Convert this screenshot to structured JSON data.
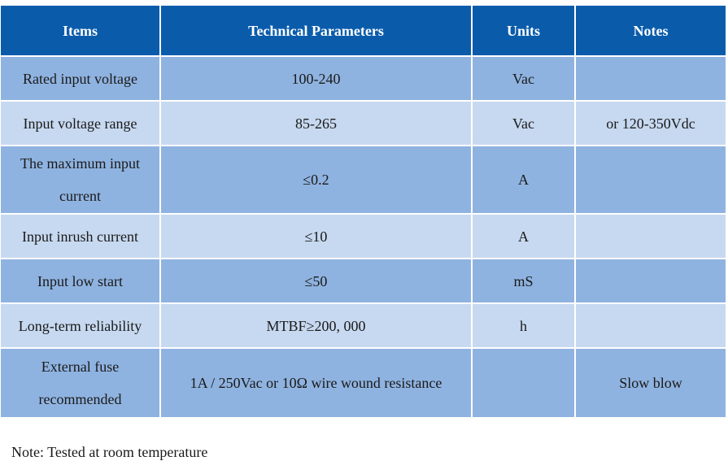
{
  "table": {
    "headers": {
      "items": "Items",
      "technical_parameters": "Technical Parameters",
      "units": "Units",
      "notes": "Notes"
    },
    "rows": [
      {
        "item": "Rated input voltage",
        "parameter": "100-240",
        "unit": "Vac",
        "note": ""
      },
      {
        "item": "Input voltage range",
        "parameter": "85-265",
        "unit": "Vac",
        "note": "or 120-350Vdc"
      },
      {
        "item": "The maximum input current",
        "parameter": "≤0.2",
        "unit": "A",
        "note": ""
      },
      {
        "item": "Input inrush current",
        "parameter": "≤10",
        "unit": "A",
        "note": ""
      },
      {
        "item": "Input low start",
        "parameter": "≤50",
        "unit": "mS",
        "note": ""
      },
      {
        "item": "Long-term reliability",
        "parameter": "MTBF≥200, 000",
        "unit": "h",
        "note": ""
      },
      {
        "item": "External fuse recommended",
        "parameter": "1A / 250Vac or 10Ω wire wound resistance",
        "unit": "",
        "note": "Slow blow"
      }
    ]
  },
  "footnote": "Note: Tested at room temperature",
  "colors": {
    "header_background": "#0a5cab",
    "header_text": "#ffffff",
    "row_dark": "#8fb3e0",
    "row_light": "#c7d9f0"
  }
}
